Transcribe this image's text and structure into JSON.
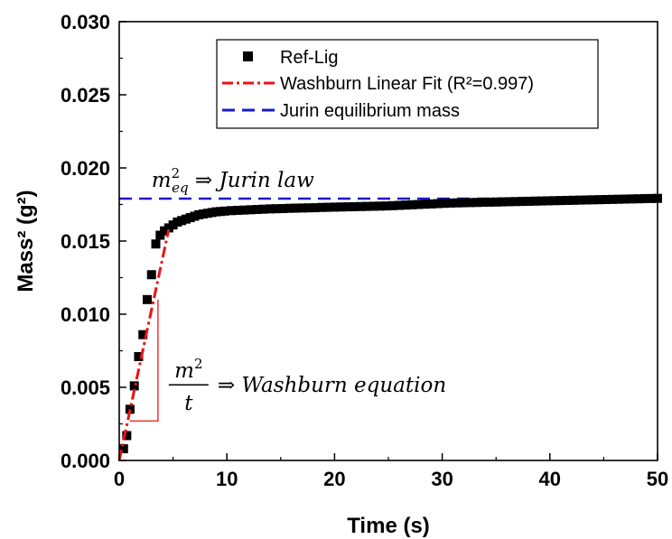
{
  "chart_data": {
    "type": "scatter",
    "xlabel": "Time (s)",
    "ylabel": "Mass² (g²)",
    "xlim": [
      0,
      50
    ],
    "ylim": [
      0,
      0.03
    ],
    "x_ticks": [
      "0",
      "10",
      "20",
      "30",
      "40",
      "50"
    ],
    "y_ticks": [
      "0.000",
      "0.005",
      "0.010",
      "0.015",
      "0.020",
      "0.025",
      "0.030"
    ],
    "grid": false,
    "legend_position": "top-right",
    "series": [
      {
        "name": "Ref-Lig",
        "kind": "scatter",
        "marker": "square",
        "color": "#000000",
        "x": [
          0.4,
          0.7,
          1.0,
          1.4,
          1.8,
          2.2,
          2.6,
          3.0,
          3.4,
          3.8,
          4.2,
          4.6,
          5.0,
          5.4,
          5.8,
          6.2,
          6.6,
          7.0,
          7.4,
          7.8,
          8.2,
          8.6,
          9.0,
          9.4,
          9.8,
          10.4,
          11.0,
          11.6,
          12.2,
          12.8,
          13.4,
          14.0,
          14.6,
          15.2,
          15.8,
          16.4,
          17.0,
          17.6,
          18.2,
          18.8,
          19.4,
          20.0,
          20.6,
          21.2,
          21.8,
          22.4,
          23.0,
          23.6,
          24.2,
          24.8,
          25.4,
          26.0,
          26.6,
          27.2,
          27.8,
          28.4,
          29.0,
          29.6,
          30.2,
          30.8,
          31.4,
          32.0,
          32.6,
          33.2,
          33.8,
          34.4,
          35.0,
          35.6,
          36.2,
          36.8,
          37.4,
          38.0,
          38.6,
          39.2,
          39.8,
          40.4,
          41.0,
          41.6,
          42.2,
          42.8,
          43.4,
          44.0,
          44.6,
          45.2,
          45.8,
          46.4,
          47.0,
          47.6,
          48.2,
          48.8,
          49.4,
          50.0
        ],
        "y": [
          0.0008,
          0.0017,
          0.0035,
          0.0051,
          0.0071,
          0.0086,
          0.011,
          0.0127,
          0.0148,
          0.0154,
          0.0157,
          0.0159,
          0.0161,
          0.0163,
          0.0164,
          0.0165,
          0.0166,
          0.0167,
          0.0168,
          0.01685,
          0.0169,
          0.01695,
          0.017,
          0.01702,
          0.01705,
          0.01708,
          0.0171,
          0.01712,
          0.01714,
          0.01716,
          0.01718,
          0.0172,
          0.01721,
          0.01722,
          0.01724,
          0.01725,
          0.01726,
          0.01727,
          0.01728,
          0.0173,
          0.01731,
          0.01732,
          0.01733,
          0.01734,
          0.01735,
          0.01736,
          0.01737,
          0.01738,
          0.01739,
          0.0174,
          0.01742,
          0.01744,
          0.01746,
          0.01748,
          0.0175,
          0.01752,
          0.01754,
          0.01756,
          0.01758,
          0.0176,
          0.01761,
          0.01762,
          0.01763,
          0.01764,
          0.01765,
          0.01766,
          0.01767,
          0.01768,
          0.01769,
          0.0177,
          0.01771,
          0.01772,
          0.01773,
          0.01774,
          0.01775,
          0.01776,
          0.01777,
          0.01778,
          0.01779,
          0.0178,
          0.01781,
          0.01782,
          0.01783,
          0.01784,
          0.01785,
          0.01786,
          0.01787,
          0.01788,
          0.01789,
          0.0179,
          0.01791,
          0.01792
        ]
      },
      {
        "name": "Washburn Linear Fit (R²=0.997)",
        "kind": "line",
        "style": "dash-dot",
        "color": "#ee1111",
        "x": [
          0.0,
          4.6
        ],
        "y": [
          0.0,
          0.0158
        ]
      },
      {
        "name": "Jurin equilibrium mass",
        "kind": "line",
        "style": "dashed",
        "color": "#1a1acc",
        "x": [
          0,
          50
        ],
        "y": [
          0.0179,
          0.0179
        ]
      }
    ],
    "slope_triangle": {
      "color": "#ee1111",
      "x": [
        1.0,
        3.6
      ],
      "y": [
        0.0027,
        0.011
      ]
    },
    "annotations": {
      "jurin_label": {
        "m": "m",
        "sup": "2",
        "sub": "eq",
        "rest": " ⇒ Jurin law",
        "x": 3.0,
        "y": 0.0187
      },
      "washburn_label": {
        "numerator": "m",
        "numerator_sup": "2",
        "denominator": "t",
        "rest": "⇒ Washburn equation",
        "x": 4.6,
        "y": 0.0048
      }
    }
  }
}
